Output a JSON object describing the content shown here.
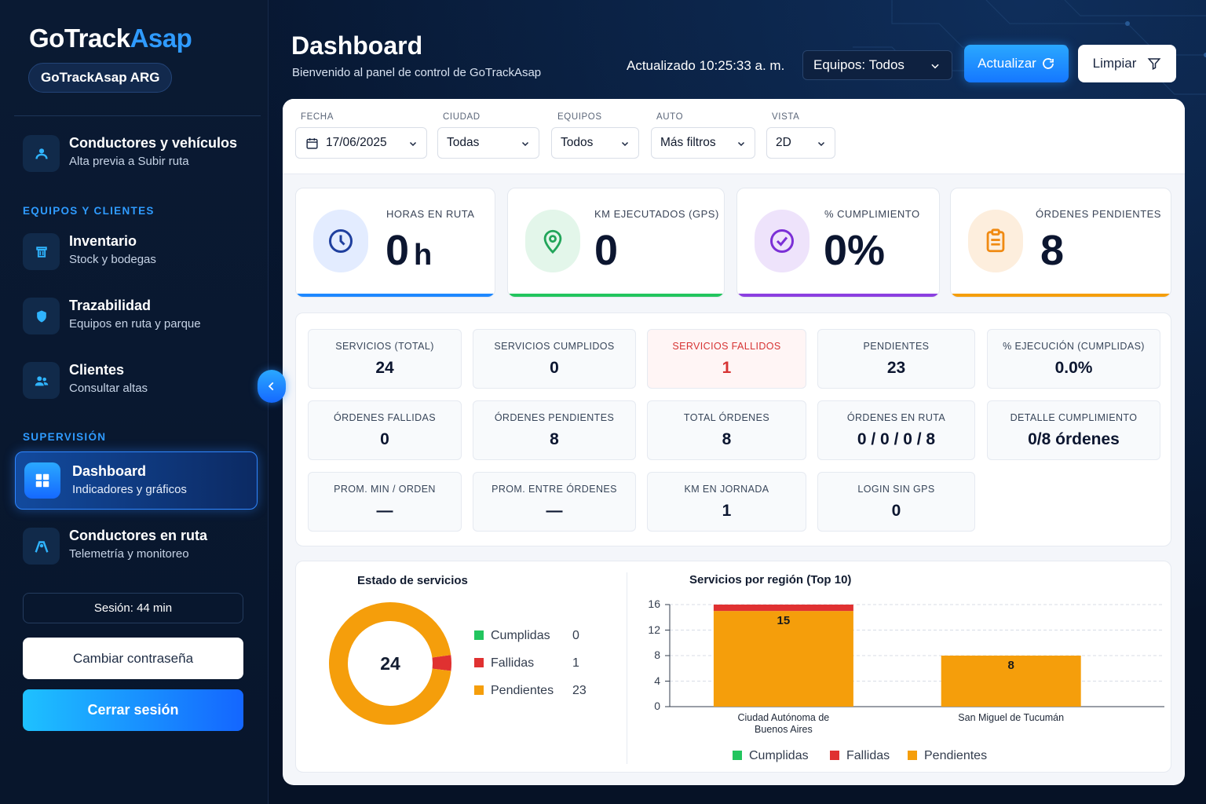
{
  "brand": {
    "name_a": "GoTrack",
    "name_b": "Asap",
    "org": "GoTrackAsap ARG"
  },
  "sidebar": {
    "top_item": {
      "title": "Conductores y vehículos",
      "subtitle": "Alta previa a Subir ruta",
      "icon": "driver-icon"
    },
    "section1": "EQUIPOS Y CLIENTES",
    "section1_items": [
      {
        "title": "Inventario",
        "subtitle": "Stock y bodegas",
        "icon": "trash-box-icon"
      },
      {
        "title": "Trazabilidad",
        "subtitle": "Equipos en ruta y parque",
        "icon": "shield-icon"
      },
      {
        "title": "Clientes",
        "subtitle": "Consultar altas",
        "icon": "users-icon"
      }
    ],
    "section2": "SUPERVISIÓN",
    "active_item": {
      "title": "Dashboard",
      "subtitle": "Indicadores y gráficos",
      "icon": "grid-icon"
    },
    "section2_items": [
      {
        "title": "Conductores en ruta",
        "subtitle": "Telemetría y monitoreo",
        "icon": "route-icon"
      }
    ],
    "session": "Sesión: 44 min",
    "change_password": "Cambiar contraseña",
    "logout": "Cerrar sesión"
  },
  "header": {
    "title": "Dashboard",
    "subtitle": "Bienvenido al panel de control de GoTrackAsap",
    "updated": "Actualizado 10:25:33 a. m.",
    "team_select": "Equipos: Todos",
    "refresh": "Actualizar",
    "clear": "Limpiar"
  },
  "filters": [
    {
      "label": "FECHA",
      "value": "17/06/2025",
      "icon": "calendar-icon"
    },
    {
      "label": "CIUDAD",
      "value": "Todas"
    },
    {
      "label": "EQUIPOS",
      "value": "Todos"
    },
    {
      "label": "AUTO",
      "value": "Más filtros"
    },
    {
      "label": "VISTA",
      "value": "2D"
    }
  ],
  "kpis": [
    {
      "label": "HORAS EN RUTA",
      "value": "0",
      "unit": "h",
      "color": "#1e88ff",
      "icon": "clock-icon"
    },
    {
      "label": "KM EJECUTADOS (GPS)",
      "value": "0",
      "unit": "",
      "color": "#22c55e",
      "icon": "location-pin-icon"
    },
    {
      "label": "% CUMPLIMIENTO",
      "value": "0%",
      "unit": "",
      "color": "#8b3fe0",
      "icon": "check-circle-icon"
    },
    {
      "label": "ÓRDENES PENDIENTES",
      "value": "8",
      "unit": "",
      "color": "#f59e0b",
      "icon": "clipboard-icon"
    }
  ],
  "stats": [
    {
      "label": "SERVICIOS (TOTAL)",
      "value": "24"
    },
    {
      "label": "SERVICIOS CUMPLIDOS",
      "value": "0"
    },
    {
      "label": "SERVICIOS FALLIDOS",
      "value": "1"
    },
    {
      "label": "PENDIENTES",
      "value": "23"
    },
    {
      "label": "% EJECUCIÓN (CUMPLIDAS)",
      "value": "0.0%"
    },
    {
      "label": "ÓRDENES FALLIDAS",
      "value": "0"
    },
    {
      "label": "ÓRDENES PENDIENTES",
      "value": "8"
    },
    {
      "label": "TOTAL ÓRDENES",
      "value": "8"
    },
    {
      "label": "ÓRDENES EN RUTA",
      "value": "0 / 0 / 0 / 8"
    },
    {
      "label": "DETALLE CUMPLIMIENTO",
      "value": "0/8 órdenes"
    },
    {
      "label": "PROM. MIN / ORDEN",
      "value": "—"
    },
    {
      "label": "PROM. ENTRE ÓRDENES",
      "value": "—"
    },
    {
      "label": "KM EN JORNADA",
      "value": "1"
    },
    {
      "label": "LOGIN SIN GPS",
      "value": "0"
    }
  ],
  "chart_data": [
    {
      "type": "pie",
      "title": "Estado de servicios",
      "center_label": "24",
      "categories": [
        "Cumplidas",
        "Fallidas",
        "Pendientes"
      ],
      "values": [
        0,
        1,
        23
      ],
      "colors": [
        "#22c55e",
        "#e03131",
        "#f59e0b"
      ]
    },
    {
      "type": "bar",
      "title": "Servicios por región (Top 10)",
      "categories": [
        "Ciudad Autónoma de Buenos Aires",
        "San Miguel de Tucumán"
      ],
      "category_lines": [
        [
          "Ciudad Autónoma de",
          "Buenos Aires"
        ],
        [
          "San Miguel de Tucumán"
        ]
      ],
      "series": [
        {
          "name": "Cumplidas",
          "values": [
            0,
            0
          ],
          "color": "#22c55e"
        },
        {
          "name": "Fallidas",
          "values": [
            1,
            0
          ],
          "color": "#e03131"
        },
        {
          "name": "Pendientes",
          "values": [
            15,
            8
          ],
          "color": "#f59e0b"
        }
      ],
      "data_labels": [
        "15",
        "8"
      ],
      "stacked": true,
      "ylim": [
        0,
        16
      ],
      "yticks": [
        0,
        4,
        8,
        12,
        16
      ],
      "legend": "bottom",
      "grid": true
    }
  ]
}
